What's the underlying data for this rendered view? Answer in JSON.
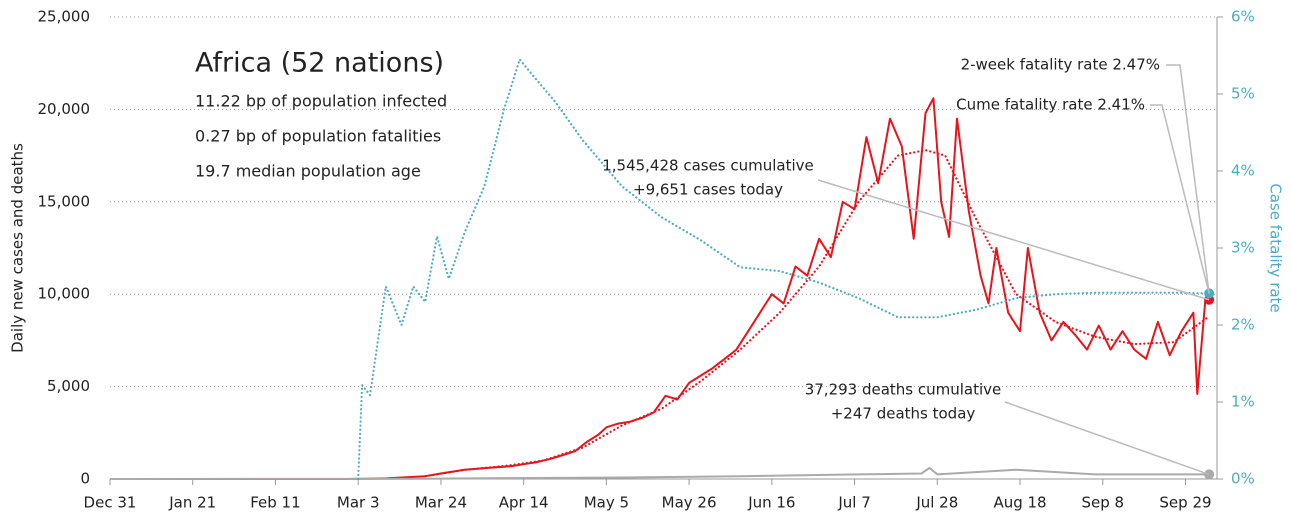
{
  "chart_data": {
    "type": "line",
    "title": "Africa (52 nations)",
    "info_lines": [
      "11.22 bp of population infected",
      "0.27 bp of population fatalities",
      "19.7 median population age"
    ],
    "ylabel": "Daily new cases and deaths",
    "y2label": "Case fatality rate",
    "annotations": [
      {
        "lines": [
          "2-week fatality rate 2.47%"
        ]
      },
      {
        "lines": [
          "Cume fatality rate 2.41%"
        ]
      },
      {
        "lines": [
          "1,545,428 cases cumulative",
          "+9,651 cases today"
        ]
      },
      {
        "lines": [
          "37,293 deaths cumulative",
          "+247 deaths today"
        ]
      }
    ],
    "xlim": [
      0,
      281
    ],
    "xticks": [
      {
        "value": 0,
        "label": "Dec 31"
      },
      {
        "value": 21,
        "label": "Jan 21"
      },
      {
        "value": 42,
        "label": "Feb 11"
      },
      {
        "value": 63,
        "label": "Mar 3"
      },
      {
        "value": 84,
        "label": "Mar 24"
      },
      {
        "value": 105,
        "label": "Apr 14"
      },
      {
        "value": 126,
        "label": "May 5"
      },
      {
        "value": 147,
        "label": "May 26"
      },
      {
        "value": 168,
        "label": "Jun 16"
      },
      {
        "value": 189,
        "label": "Jul 7"
      },
      {
        "value": 210,
        "label": "Jul 28"
      },
      {
        "value": 231,
        "label": "Aug 18"
      },
      {
        "value": 252,
        "label": "Sep 8"
      },
      {
        "value": 273,
        "label": "Sep 29"
      }
    ],
    "ylim": [
      0,
      25000
    ],
    "yticks": [
      0,
      {
        "value": 5000,
        "label": "5,000"
      },
      {
        "value": 10000,
        "label": "10,000"
      },
      {
        "value": 15000,
        "label": "15,000"
      },
      {
        "value": 20000,
        "label": "20,000"
      },
      {
        "value": 25000,
        "label": "25,000"
      }
    ],
    "y2lim": [
      0,
      6
    ],
    "y2ticks": [
      {
        "value": 0,
        "label": "0%"
      },
      {
        "value": 1,
        "label": "1%"
      },
      {
        "value": 2,
        "label": "2%"
      },
      {
        "value": 3,
        "label": "3%"
      },
      {
        "value": 4,
        "label": "4%"
      },
      {
        "value": 5,
        "label": "5%"
      },
      {
        "value": 6,
        "label": "6%"
      }
    ],
    "grid": true,
    "series": [
      {
        "color": "#e8141b",
        "style": "solid",
        "endpoint": true,
        "x": [
          0,
          60,
          70,
          80,
          84,
          90,
          96,
          102,
          105,
          108,
          112,
          115,
          118,
          121,
          124,
          126,
          129,
          132,
          135,
          138,
          141,
          144,
          147,
          150,
          153,
          156,
          159,
          162,
          165,
          168,
          171,
          174,
          177,
          180,
          183,
          186,
          189,
          192,
          195,
          198,
          201,
          204,
          207,
          209,
          211,
          213,
          215,
          218,
          221,
          223,
          225,
          228,
          231,
          233,
          236,
          239,
          242,
          245,
          248,
          251,
          254,
          257,
          260,
          263,
          266,
          269,
          272,
          275,
          276,
          278,
          279
        ],
        "values": [
          0,
          0,
          30,
          150,
          300,
          500,
          600,
          700,
          800,
          900,
          1100,
          1300,
          1500,
          2000,
          2400,
          2800,
          3000,
          3100,
          3300,
          3600,
          4500,
          4300,
          5200,
          5600,
          6000,
          6500,
          7000,
          8000,
          9000,
          10000,
          9500,
          11500,
          11000,
          13000,
          12000,
          15000,
          14600,
          18500,
          16000,
          19500,
          18000,
          13000,
          19800,
          20600,
          15000,
          13100,
          19500,
          14500,
          11000,
          9500,
          12500,
          9000,
          8000,
          12500,
          9000,
          7500,
          8500,
          7800,
          7000,
          8300,
          7000,
          8000,
          7000,
          6500,
          8500,
          6700,
          8000,
          9000,
          4600,
          9600,
          9700
        ]
      },
      {
        "color": "#e8141b",
        "style": "dotted",
        "x": [
          80,
          90,
          100,
          110,
          120,
          130,
          140,
          150,
          160,
          170,
          180,
          190,
          200,
          207,
          212,
          220,
          230,
          240,
          250,
          260,
          270,
          279
        ],
        "values": [
          150,
          500,
          700,
          1000,
          1700,
          2900,
          3800,
          5300,
          7000,
          9000,
          11500,
          15000,
          17500,
          17800,
          17500,
          14000,
          10000,
          8500,
          7700,
          7300,
          7400,
          8800
        ]
      },
      {
        "color": "#aaaaaa",
        "style": "solid",
        "endpoint": true,
        "x": [
          0,
          80,
          100,
          130,
          160,
          190,
          206,
          208,
          210,
          230,
          250,
          279
        ],
        "values": [
          0,
          10,
          50,
          80,
          150,
          250,
          300,
          600,
          250,
          500,
          250,
          247
        ]
      },
      {
        "color": "#4bacc6",
        "style": "dotted",
        "axis": "y2",
        "endpoint": true,
        "x": [
          63,
          64,
          66,
          70,
          74,
          77,
          80,
          83,
          86,
          90,
          95,
          100,
          104,
          108,
          113,
          120,
          130,
          140,
          150,
          160,
          170,
          180,
          190,
          200,
          210,
          220,
          230,
          240,
          250,
          260,
          270,
          279
        ],
        "values": [
          0,
          1.22,
          1.09,
          2.5,
          2.0,
          2.5,
          2.3,
          3.15,
          2.6,
          3.2,
          3.8,
          4.8,
          5.45,
          5.2,
          4.9,
          4.4,
          3.8,
          3.4,
          3.1,
          2.75,
          2.7,
          2.55,
          2.35,
          2.1,
          2.1,
          2.2,
          2.35,
          2.4,
          2.42,
          2.42,
          2.42,
          2.41
        ]
      }
    ]
  }
}
